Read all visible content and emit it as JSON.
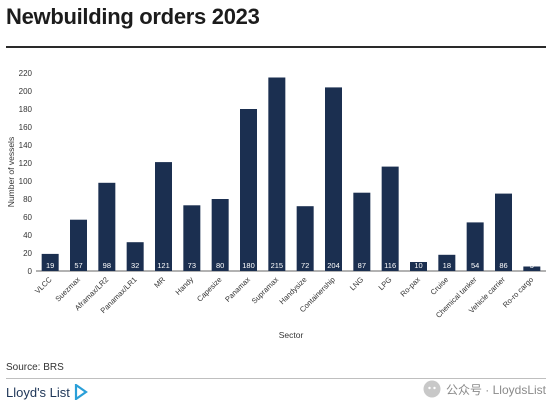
{
  "header": {
    "title": "Newbuilding orders 2023"
  },
  "footer": {
    "source": "Source: BRS",
    "logo": "Lloyd's List",
    "watermark": "公众号 · LloydsList"
  },
  "colors": {
    "bar": "#1b2f50",
    "grid": "#e3e3e3",
    "text": "#222222"
  },
  "chart_data": {
    "type": "bar",
    "title": "Newbuilding orders 2023",
    "xlabel": "Sector",
    "ylabel": "Number of vessels",
    "ylim": [
      0,
      220
    ],
    "yticks": [
      0,
      20,
      40,
      60,
      80,
      100,
      120,
      140,
      160,
      180,
      200,
      220
    ],
    "grid": false,
    "categories": [
      "VLCC",
      "Suezmax",
      "Aframax/LR2",
      "Panamax/LR1",
      "MR",
      "Handy",
      "Capesize",
      "Panamax",
      "Supramax",
      "Handysize",
      "Containership",
      "LNG",
      "LPG",
      "Ro-pax",
      "Cruise",
      "Chemical tanker",
      "Vehicle carrier",
      "Ro-ro cargo"
    ],
    "values": [
      19,
      57,
      98,
      32,
      121,
      73,
      80,
      180,
      215,
      72,
      204,
      87,
      116,
      10,
      18,
      54,
      86,
      5
    ],
    "data_labels": [
      "19",
      "57",
      "98",
      "32",
      "121",
      "73",
      "80",
      "180",
      "215",
      "72",
      "204",
      "87",
      "116",
      "10",
      "18",
      "54",
      "86",
      "5"
    ]
  }
}
